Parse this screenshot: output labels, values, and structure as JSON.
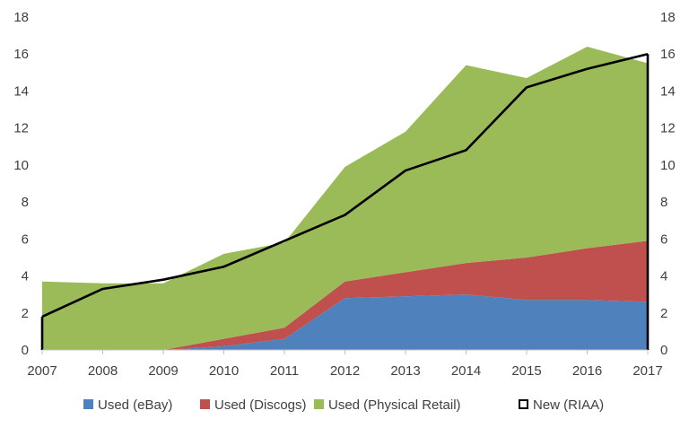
{
  "chart_data": {
    "type": "area",
    "stacked": true,
    "x": [
      2007,
      2008,
      2009,
      2010,
      2011,
      2012,
      2013,
      2014,
      2015,
      2016,
      2017
    ],
    "x_tick_labels": [
      "2007",
      "2008",
      "2009",
      "2010",
      "2011",
      "2012",
      "2013",
      "2014",
      "2015",
      "2016",
      "2017"
    ],
    "y_tick_labels": [
      "0",
      "2",
      "4",
      "6",
      "8",
      "10",
      "12",
      "14",
      "16",
      "18"
    ],
    "ylim": [
      0,
      18
    ],
    "y2lim": [
      0,
      18
    ],
    "grid": false,
    "legend_position": "bottom",
    "series": [
      {
        "name": "Used (eBay)",
        "kind": "area",
        "color": "#4f81bd",
        "values": [
          0,
          0,
          0,
          0.2,
          0.6,
          2.8,
          2.9,
          3.0,
          2.7,
          2.7,
          2.6
        ]
      },
      {
        "name": "Used (Discogs)",
        "kind": "area",
        "color": "#c0504d",
        "values": [
          0,
          0,
          0,
          0.4,
          0.6,
          0.9,
          1.3,
          1.7,
          2.3,
          2.8,
          3.3
        ]
      },
      {
        "name": "Used (Physical Retail)",
        "kind": "area",
        "color": "#9bbb59",
        "values": [
          3.7,
          3.6,
          3.6,
          4.6,
          4.6,
          6.2,
          7.6,
          10.7,
          9.7,
          10.9,
          9.6
        ]
      },
      {
        "name": "New (RIAA)",
        "kind": "line",
        "color": "#000000",
        "axis": "right",
        "values": [
          1.8,
          3.3,
          3.8,
          4.5,
          5.9,
          7.3,
          9.7,
          10.8,
          14.2,
          15.2,
          16.0
        ]
      }
    ]
  }
}
